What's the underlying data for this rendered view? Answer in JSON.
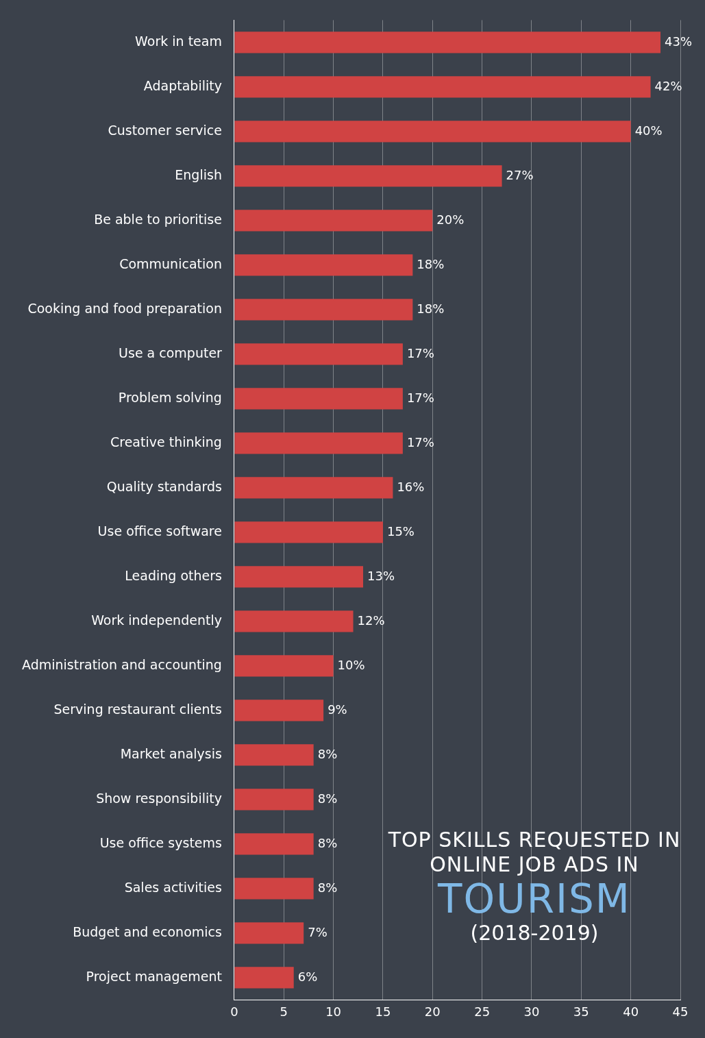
{
  "chart_data": {
    "type": "bar",
    "orientation": "horizontal",
    "title": "TOP SKILLS REQUESTED IN ONLINE JOB ADS IN TOURISM",
    "subtitle": "(2018-2019)",
    "categories": [
      "Work in team",
      "Adaptability",
      "Customer service",
      "English",
      "Be able to prioritise",
      "Communication",
      "Cooking and food preparation",
      "Use a computer",
      "Problem solving",
      "Creative thinking",
      "Quality standards",
      "Use office software",
      "Leading others",
      "Work independently",
      "Administration and accounting",
      "Serving restaurant clients",
      "Market analysis",
      "Show responsibility",
      "Use office systems",
      "Sales activities",
      "Budget and economics",
      "Project management"
    ],
    "values": [
      43,
      42,
      40,
      27,
      20,
      18,
      18,
      17,
      17,
      17,
      16,
      15,
      13,
      12,
      10,
      9,
      8,
      8,
      8,
      8,
      7,
      6
    ],
    "value_labels": [
      "43%",
      "42%",
      "40%",
      "27%",
      "20%",
      "18%",
      "18%",
      "17%",
      "17%",
      "17%",
      "16%",
      "15%",
      "13%",
      "12%",
      "10%",
      "9%",
      "8%",
      "8%",
      "8%",
      "8%",
      "7%",
      "6%"
    ],
    "color": "#d04343",
    "xlim": [
      0,
      45
    ],
    "xticks": [
      0,
      5,
      10,
      15,
      20,
      25,
      30,
      35,
      40,
      45
    ],
    "grid": "x",
    "legend": false
  }
}
